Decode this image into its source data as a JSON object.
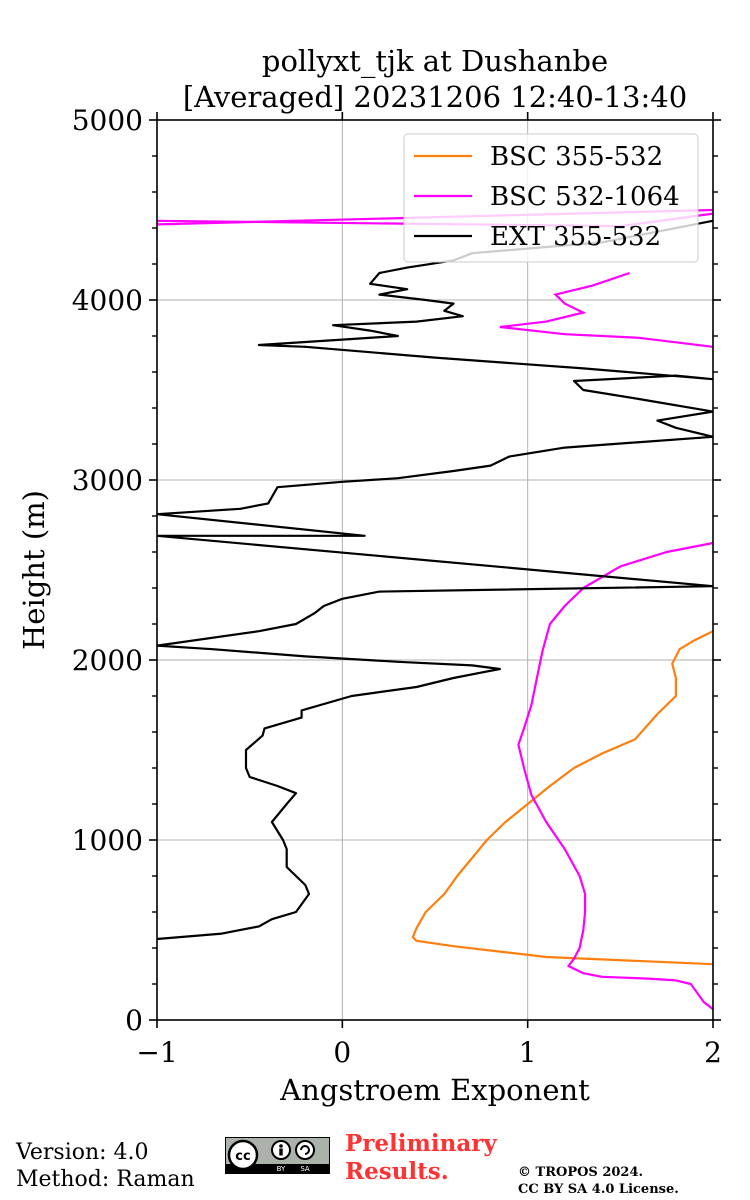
{
  "chart_data": {
    "type": "line",
    "title": [
      "pollyxt_tjk at Dushanbe",
      "[Averaged] 20231206 12:40-13:40"
    ],
    "xlabel": "Angstroem Exponent",
    "ylabel": "Height (m)",
    "xlim": [
      -1,
      2
    ],
    "ylim": [
      0,
      5000
    ],
    "xticks": [
      -1,
      0,
      1,
      2
    ],
    "xtick_labels": [
      "−1",
      "0",
      "1",
      "2"
    ],
    "yticks": [
      0,
      1000,
      2000,
      3000,
      4000,
      5000
    ],
    "ytick_labels": [
      "0",
      "1000",
      "2000",
      "3000",
      "4000",
      "5000"
    ],
    "grid": true,
    "legend_position": "top-right",
    "series": [
      {
        "name": "BSC 355-532",
        "color": "#ff7f0e",
        "points": [
          [
            2.0,
            310
          ],
          [
            1.1,
            350
          ],
          [
            0.85,
            380
          ],
          [
            0.6,
            410
          ],
          [
            0.4,
            440
          ],
          [
            0.38,
            460
          ],
          [
            0.4,
            510
          ],
          [
            0.45,
            600
          ],
          [
            0.55,
            700
          ],
          [
            0.62,
            800
          ],
          [
            0.7,
            900
          ],
          [
            0.78,
            1000
          ],
          [
            0.88,
            1100
          ],
          [
            1.0,
            1200
          ],
          [
            1.12,
            1300
          ],
          [
            1.25,
            1400
          ],
          [
            1.4,
            1480
          ],
          [
            1.58,
            1560
          ],
          [
            1.7,
            1700
          ],
          [
            1.8,
            1800
          ],
          [
            1.8,
            1900
          ],
          [
            1.78,
            1980
          ],
          [
            1.82,
            2060
          ],
          [
            1.9,
            2110
          ],
          [
            2.0,
            2160
          ]
        ]
      },
      {
        "name": "BSC 532-1064",
        "color": "#ff00ff",
        "points": [
          [
            2.0,
            60
          ],
          [
            1.95,
            100
          ],
          [
            1.88,
            200
          ],
          [
            1.8,
            220
          ],
          [
            1.65,
            230
          ],
          [
            1.4,
            240
          ],
          [
            1.3,
            260
          ],
          [
            1.22,
            300
          ],
          [
            1.25,
            340
          ],
          [
            1.28,
            400
          ],
          [
            1.3,
            500
          ],
          [
            1.31,
            600
          ],
          [
            1.31,
            700
          ],
          [
            1.28,
            800
          ],
          [
            1.2,
            950
          ],
          [
            1.1,
            1100
          ],
          [
            1.02,
            1250
          ],
          [
            0.98,
            1400
          ],
          [
            0.95,
            1530
          ],
          [
            0.98,
            1620
          ],
          [
            1.02,
            1750
          ],
          [
            1.05,
            1900
          ],
          [
            1.08,
            2050
          ],
          [
            1.12,
            2200
          ],
          [
            1.2,
            2300
          ],
          [
            1.3,
            2400
          ],
          [
            1.5,
            2520
          ],
          [
            1.75,
            2600
          ],
          [
            2.0,
            2650
          ]
        ]
      },
      {
        "name": "EXT 355-532",
        "color": "#000000",
        "points": [
          [
            -1.0,
            450
          ],
          [
            -0.65,
            480
          ],
          [
            -0.45,
            520
          ],
          [
            -0.38,
            560
          ],
          [
            -0.25,
            600
          ],
          [
            -0.18,
            700
          ],
          [
            -0.2,
            750
          ],
          [
            -0.25,
            800
          ],
          [
            -0.3,
            850
          ],
          [
            -0.3,
            950
          ],
          [
            -0.32,
            1000
          ],
          [
            -0.38,
            1100
          ],
          [
            -0.3,
            1200
          ],
          [
            -0.25,
            1260
          ],
          [
            -0.35,
            1300
          ],
          [
            -0.5,
            1350
          ],
          [
            -0.52,
            1400
          ],
          [
            -0.52,
            1450
          ],
          [
            -0.52,
            1500
          ],
          [
            -0.43,
            1580
          ],
          [
            -0.42,
            1620
          ],
          [
            -0.22,
            1680
          ],
          [
            -0.22,
            1720
          ],
          [
            0.05,
            1800
          ],
          [
            0.4,
            1850
          ],
          [
            0.6,
            1900
          ],
          [
            0.75,
            1930
          ],
          [
            0.85,
            1950
          ],
          [
            0.7,
            1970
          ],
          [
            0.3,
            1990
          ],
          [
            -0.2,
            2020
          ],
          [
            -0.7,
            2060
          ],
          [
            -1.0,
            2080
          ],
          [
            -0.45,
            2160
          ],
          [
            -0.25,
            2200
          ],
          [
            -0.15,
            2260
          ],
          [
            -0.1,
            2300
          ],
          [
            0.0,
            2340
          ],
          [
            0.2,
            2380
          ],
          [
            2.0,
            2410
          ],
          [
            -1.0,
            2690
          ],
          [
            0.12,
            2690
          ],
          [
            -1.0,
            2810
          ],
          [
            -0.55,
            2840
          ],
          [
            -0.4,
            2870
          ],
          [
            -0.35,
            2960
          ],
          [
            0.0,
            2990
          ],
          [
            0.3,
            3010
          ],
          [
            0.6,
            3050
          ],
          [
            0.8,
            3080
          ],
          [
            0.9,
            3130
          ],
          [
            1.2,
            3180
          ],
          [
            2.0,
            3240
          ],
          [
            1.8,
            3290
          ],
          [
            1.7,
            3330
          ],
          [
            2.0,
            3380
          ],
          [
            1.6,
            3450
          ],
          [
            1.3,
            3500
          ],
          [
            1.25,
            3550
          ],
          [
            1.8,
            3580
          ],
          [
            2.0,
            3560
          ],
          [
            1.3,
            3620
          ],
          [
            0.5,
            3680
          ],
          [
            -0.2,
            3740
          ],
          [
            -0.45,
            3750
          ],
          [
            0.0,
            3780
          ],
          [
            0.3,
            3800
          ],
          [
            0.15,
            3830
          ],
          [
            -0.05,
            3860
          ],
          [
            0.4,
            3880
          ],
          [
            0.65,
            3910
          ],
          [
            0.55,
            3940
          ],
          [
            0.6,
            3980
          ],
          [
            0.45,
            4000
          ],
          [
            0.2,
            4030
          ],
          [
            0.35,
            4060
          ],
          [
            0.15,
            4090
          ],
          [
            0.2,
            4150
          ],
          [
            0.35,
            4180
          ],
          [
            0.6,
            4220
          ],
          [
            0.7,
            4260
          ],
          [
            1.4,
            4320
          ],
          [
            2.0,
            4440
          ]
        ]
      }
    ]
  },
  "footer": {
    "version": "Version: 4.0",
    "method": "Method: Raman",
    "preliminary_line1": "Preliminary",
    "preliminary_line2": "Results.",
    "copyright_line1": "© TROPOS 2024.",
    "copyright_line2": "CC BY SA 4.0 License.",
    "cc_label": "cc",
    "by_label": "BY",
    "sa_label": "SA"
  }
}
